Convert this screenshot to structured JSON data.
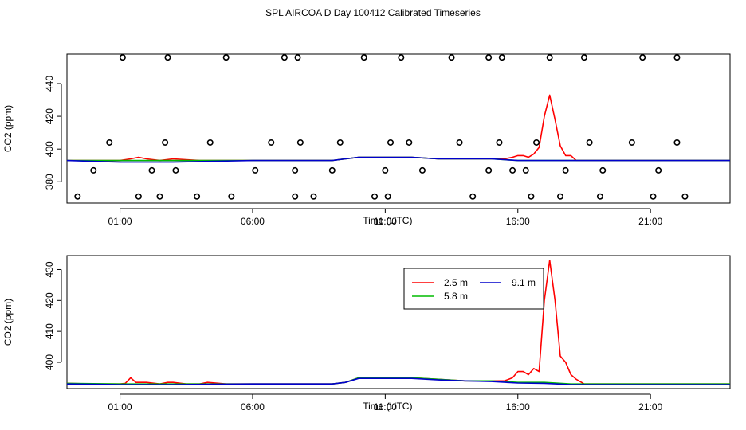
{
  "title": "SPL AIRCOA D  Day 100412  Calibrated Timeseries",
  "colors": {
    "s25": "#ff0000",
    "s58": "#00bb00",
    "s91": "#0000cc",
    "other": "#00aaaa"
  },
  "chart_data": [
    {
      "type": "line",
      "panel": "top",
      "xlabel": "Time (UTC)",
      "ylabel": "CO2 (ppm)",
      "xlim": [
        -1.0,
        24.0
      ],
      "ylim": [
        367,
        458
      ],
      "xticks": [
        1,
        6,
        11,
        16,
        21
      ],
      "xtick_labels": [
        "01:00",
        "06:00",
        "11:00",
        "16:00",
        "21:00"
      ],
      "yticks": [
        380,
        400,
        420,
        440
      ],
      "grid": false,
      "series": [
        {
          "color": "#ff0000",
          "x": [
            -1.0,
            0.0,
            0.5,
            0.8,
            1.0,
            1.4,
            1.7,
            2.0,
            2.5,
            3.0,
            4.0,
            5.0,
            6.0,
            7.0,
            8.0,
            9.0,
            9.5,
            10.0,
            10.5,
            11.0,
            12.0,
            13.0,
            14.0,
            15.0,
            15.5,
            15.8,
            16.0,
            16.2,
            16.4,
            16.6,
            16.8,
            17.0,
            17.2,
            17.4,
            17.6,
            17.8,
            18.0,
            18.2,
            18.5,
            19.0,
            20.0,
            21.0,
            22.0,
            23.0,
            24.0
          ],
          "y": [
            393,
            393,
            393,
            393,
            393,
            394,
            395,
            394,
            393,
            394,
            393,
            393,
            393,
            393,
            393,
            393,
            394,
            395,
            395,
            395,
            395,
            394,
            394,
            394,
            394,
            395,
            396,
            396,
            395,
            397,
            401,
            420,
            433,
            418,
            402,
            396,
            396,
            393,
            393,
            393,
            393,
            393,
            393,
            393,
            393
          ]
        },
        {
          "color": "#00bb00",
          "x": [
            -1.0,
            1.0,
            3.0,
            6.0,
            9.0,
            9.5,
            10.0,
            10.5,
            11.0,
            12.0,
            13.0,
            14.0,
            15.0,
            16.0,
            17.0,
            18.0,
            19.0,
            21.0,
            24.0
          ],
          "y": [
            393,
            393,
            393,
            393,
            393,
            394,
            395,
            395,
            395,
            395,
            394,
            394,
            394,
            393,
            393,
            393,
            393,
            393,
            393
          ]
        },
        {
          "color": "#0000cc",
          "x": [
            -1.0,
            1.0,
            3.0,
            6.0,
            9.0,
            9.5,
            10.0,
            10.5,
            11.0,
            12.0,
            13.0,
            14.0,
            15.0,
            16.0,
            17.0,
            18.0,
            19.0,
            21.0,
            24.0
          ],
          "y": [
            393,
            392,
            392,
            393,
            393,
            394,
            395,
            395,
            395,
            395,
            394,
            394,
            394,
            393,
            393,
            393,
            393,
            393,
            393
          ]
        }
      ],
      "points": {
        "x": [
          -0.6,
          0.0,
          0.6,
          1.1,
          1.7,
          2.2,
          2.5,
          2.7,
          2.8,
          3.1,
          3.9,
          4.4,
          5.0,
          5.2,
          6.1,
          6.7,
          7.2,
          7.6,
          7.6,
          7.7,
          7.8,
          8.3,
          9.0,
          9.3,
          10.2,
          10.6,
          11.0,
          11.1,
          11.2,
          11.6,
          11.9,
          12.4,
          13.5,
          13.8,
          14.3,
          14.9,
          14.9,
          15.3,
          15.4,
          15.8,
          16.3,
          16.5,
          16.7,
          17.2,
          17.6,
          17.8,
          18.5,
          18.7,
          19.1,
          19.2,
          20.3,
          20.7,
          21.1,
          21.3,
          22.0,
          22.0,
          22.3
        ],
        "y": [
          371,
          387,
          404,
          456,
          371,
          387,
          371,
          404,
          456,
          387,
          371,
          404,
          456,
          371,
          387,
          404,
          456,
          387,
          371,
          456,
          404,
          371,
          387,
          404,
          456,
          371,
          387,
          371,
          404,
          456,
          404,
          387,
          456,
          404,
          371,
          387,
          456,
          404,
          456,
          387,
          387,
          371,
          404,
          456,
          371,
          387,
          456,
          404,
          371,
          387,
          404,
          456,
          371,
          387,
          404,
          456,
          371
        ]
      }
    },
    {
      "type": "line",
      "panel": "bottom",
      "xlabel": "Time (UTC)",
      "ylabel": "CO2 (ppm)",
      "xlim": [
        -1.0,
        24.0
      ],
      "ylim": [
        391.5,
        434.5
      ],
      "xticks": [
        1,
        6,
        11,
        16,
        21
      ],
      "xtick_labels": [
        "01:00",
        "06:00",
        "11:00",
        "16:00",
        "21:00"
      ],
      "yticks": [
        400,
        410,
        420,
        430
      ],
      "grid": false,
      "legend_position": "top-center",
      "series": [
        {
          "name": "2.5 m",
          "color": "#ff0000",
          "x": [
            -1.0,
            0.0,
            0.5,
            0.8,
            1.0,
            1.2,
            1.4,
            1.6,
            2.0,
            2.5,
            2.8,
            3.0,
            3.5,
            4.0,
            4.3,
            5.0,
            6.0,
            7.0,
            8.0,
            9.0,
            9.5,
            10.0,
            10.5,
            11.0,
            12.0,
            13.0,
            14.0,
            14.8,
            15.0,
            15.5,
            15.8,
            16.0,
            16.2,
            16.4,
            16.6,
            16.8,
            17.0,
            17.2,
            17.4,
            17.6,
            17.8,
            18.0,
            18.2,
            18.5,
            19.0,
            20.0,
            21.0,
            22.0,
            23.0,
            24.0
          ],
          "y": [
            393.2,
            393,
            393,
            393,
            393,
            393.2,
            395,
            393.5,
            393.5,
            393,
            393.5,
            393.5,
            393,
            393,
            393.5,
            393,
            393,
            393,
            393,
            393,
            393.5,
            395,
            395,
            395,
            395,
            394.5,
            394,
            394,
            394,
            394,
            395,
            397,
            397,
            396,
            398,
            397,
            420,
            433,
            420,
            402,
            400,
            396,
            394.5,
            393,
            393,
            393,
            393,
            393,
            393,
            393
          ]
        },
        {
          "name": "5.8 m",
          "color": "#00bb00",
          "x": [
            -1.0,
            1.0,
            3.0,
            6.0,
            9.0,
            9.5,
            10.0,
            10.5,
            11.0,
            12.0,
            13.0,
            14.0,
            15.0,
            16.0,
            17.0,
            18.0,
            19.0,
            21.0,
            24.0
          ],
          "y": [
            393.2,
            393,
            393,
            393,
            393,
            393.5,
            395,
            395,
            395,
            395,
            394.5,
            394,
            394,
            393.5,
            393.5,
            393,
            393,
            393,
            393
          ]
        },
        {
          "name": "9.1 m",
          "color": "#0000cc",
          "x": [
            -1.0,
            1.0,
            3.0,
            6.0,
            9.0,
            9.5,
            10.0,
            10.5,
            11.0,
            12.0,
            13.0,
            14.0,
            15.0,
            16.0,
            17.0,
            18.0,
            19.0,
            21.0,
            24.0
          ],
          "y": [
            393,
            392.8,
            392.8,
            393,
            393,
            393.5,
            394.8,
            394.8,
            394.8,
            394.8,
            394.3,
            394,
            393.8,
            393.3,
            393.2,
            392.8,
            392.8,
            392.8,
            392.8
          ]
        }
      ]
    }
  ]
}
